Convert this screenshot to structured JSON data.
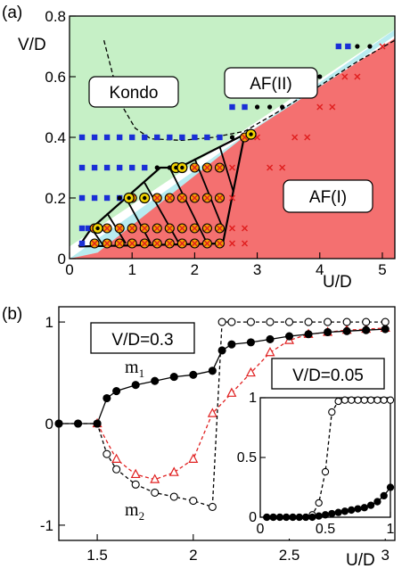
{
  "panel_a": {
    "panel_label": "(a)",
    "xlabel": "U/D",
    "ylabel": "V/D",
    "xticks": [
      "0",
      "1",
      "2",
      "3",
      "4",
      "5"
    ],
    "yticks": [
      "0",
      "0.2",
      "0.4",
      "0.6",
      "0.8"
    ],
    "regions": {
      "kondo": "Kondo",
      "af2": "AF(II)",
      "af1": "AF(I)"
    },
    "colors": {
      "kondo": "#c6f0c6",
      "af2": "#b8ecf0",
      "af1": "#f47070",
      "blue_square": "#1a2fd6",
      "red_cross": "#e02020",
      "ring_yellow": "#f2d400",
      "ring_orange": "#f2a000"
    }
  },
  "panel_b": {
    "panel_label": "(b)",
    "xlabel": "U/D",
    "xticks": [
      "1.5",
      "2",
      "2.5",
      "3"
    ],
    "yticks": [
      "-1",
      "0",
      "1"
    ],
    "box_label": "V/D=0.3",
    "m1": "m",
    "m1_sub": "1",
    "m2": "m",
    "m2_sub": "2",
    "inset": {
      "box_label": "V/D=0.05",
      "xticks": [
        "0",
        "0.5",
        "1"
      ],
      "yticks": [
        "0",
        "0.5",
        "1"
      ]
    },
    "colors": {
      "filled": "#000000",
      "triangle": "#e02020",
      "open_dashed": "#000000"
    }
  },
  "chart_data": [
    {
      "type": "scatter",
      "panel": "(a)",
      "xlabel": "U/D",
      "ylabel": "V/D",
      "xlim": [
        0,
        5.2
      ],
      "ylim": [
        0,
        0.8
      ],
      "series": [
        {
          "marker": "blue square",
          "points": [
            [
              0.2,
              0.05
            ],
            [
              0.2,
              0.1
            ],
            [
              0.3,
              0.1
            ],
            [
              0.2,
              0.2
            ],
            [
              0.4,
              0.2
            ],
            [
              0.6,
              0.2
            ],
            [
              0.8,
              0.2
            ],
            [
              0.2,
              0.3
            ],
            [
              0.4,
              0.3
            ],
            [
              0.6,
              0.3
            ],
            [
              0.8,
              0.3
            ],
            [
              1.0,
              0.3
            ],
            [
              1.2,
              0.3
            ],
            [
              0.2,
              0.4
            ],
            [
              0.4,
              0.4
            ],
            [
              0.6,
              0.4
            ],
            [
              0.8,
              0.4
            ],
            [
              1.0,
              0.4
            ],
            [
              1.2,
              0.4
            ],
            [
              1.4,
              0.4
            ],
            [
              1.6,
              0.4
            ],
            [
              1.8,
              0.4
            ],
            [
              2.0,
              0.4
            ],
            [
              2.2,
              0.4
            ],
            [
              2.4,
              0.4
            ],
            [
              2.6,
              0.5
            ],
            [
              2.8,
              0.5
            ],
            [
              4.3,
              0.7
            ],
            [
              4.45,
              0.7
            ]
          ]
        },
        {
          "marker": "black dot",
          "points": [
            [
              0.6,
              0.1
            ],
            [
              0.8,
              0.2
            ],
            [
              1.4,
              0.3
            ],
            [
              1.6,
              0.3
            ],
            [
              2.6,
              0.4
            ],
            [
              2.8,
              0.4
            ],
            [
              3.0,
              0.5
            ],
            [
              3.2,
              0.5
            ],
            [
              3.4,
              0.5
            ],
            [
              3.8,
              0.6
            ],
            [
              4.0,
              0.6
            ],
            [
              4.6,
              0.7
            ],
            [
              4.8,
              0.7
            ]
          ]
        },
        {
          "marker": "red cross",
          "points": [
            [
              3.0,
              0.4
            ],
            [
              3.2,
              0.3
            ],
            [
              3.4,
              0.3
            ],
            [
              3.6,
              0.4
            ],
            [
              3.8,
              0.4
            ],
            [
              4.0,
              0.5
            ],
            [
              4.2,
              0.5
            ],
            [
              4.4,
              0.6
            ],
            [
              4.6,
              0.6
            ],
            [
              5.0,
              0.7
            ],
            [
              2.6,
              0.1
            ],
            [
              2.8,
              0.1
            ],
            [
              2.6,
              0.05
            ],
            [
              2.8,
              0.05
            ],
            [
              2.6,
              0.2
            ],
            [
              2.6,
              0.3
            ]
          ]
        },
        {
          "marker": "circled cross (ringed region)",
          "points": [
            [
              0.4,
              0.05
            ],
            [
              0.6,
              0.05
            ],
            [
              0.8,
              0.05
            ],
            [
              1.0,
              0.05
            ],
            [
              1.2,
              0.05
            ],
            [
              1.4,
              0.05
            ],
            [
              1.6,
              0.05
            ],
            [
              1.8,
              0.05
            ],
            [
              2.0,
              0.05
            ],
            [
              2.2,
              0.05
            ],
            [
              2.4,
              0.05
            ],
            [
              0.4,
              0.1
            ],
            [
              0.6,
              0.1
            ],
            [
              0.8,
              0.1
            ],
            [
              1.0,
              0.1
            ],
            [
              1.2,
              0.1
            ],
            [
              1.4,
              0.1
            ],
            [
              1.6,
              0.1
            ],
            [
              1.8,
              0.1
            ],
            [
              2.0,
              0.1
            ],
            [
              2.2,
              0.1
            ],
            [
              2.4,
              0.1
            ],
            [
              1.0,
              0.2
            ],
            [
              1.2,
              0.2
            ],
            [
              1.4,
              0.2
            ],
            [
              1.6,
              0.2
            ],
            [
              1.8,
              0.2
            ],
            [
              2.0,
              0.2
            ],
            [
              2.2,
              0.2
            ],
            [
              2.4,
              0.2
            ],
            [
              1.8,
              0.3
            ],
            [
              2.0,
              0.3
            ],
            [
              2.2,
              0.3
            ],
            [
              2.4,
              0.3
            ],
            [
              2.8,
              0.4
            ]
          ]
        }
      ]
    },
    {
      "type": "line",
      "panel": "(b)",
      "xlabel": "U/D",
      "xlim": [
        1.3,
        3.05
      ],
      "ylim": [
        -1.15,
        1.15
      ],
      "series": [
        {
          "name": "m1",
          "marker": "filled circle",
          "line": "solid black",
          "x": [
            1.3,
            1.4,
            1.5,
            1.55,
            1.6,
            1.7,
            1.8,
            1.9,
            2.0,
            2.1,
            2.15,
            2.2,
            2.3,
            2.4,
            2.5,
            2.6,
            2.7,
            2.8,
            2.9,
            3.0
          ],
          "y": [
            0,
            0,
            0,
            0.25,
            0.32,
            0.38,
            0.42,
            0.46,
            0.48,
            0.52,
            0.72,
            0.78,
            0.8,
            0.83,
            0.86,
            0.88,
            0.9,
            0.91,
            0.92,
            0.93
          ]
        },
        {
          "marker": "open triangle",
          "line": "dashed red",
          "x": [
            1.5,
            1.6,
            1.7,
            1.8,
            1.9,
            2.0,
            2.1,
            2.2,
            2.3,
            2.4,
            2.5,
            2.6,
            2.7,
            2.8,
            2.9,
            3.0
          ],
          "y": [
            0,
            -0.35,
            -0.5,
            -0.55,
            -0.48,
            -0.35,
            0.1,
            0.3,
            0.5,
            0.7,
            0.82,
            0.88,
            0.9,
            0.92,
            0.93,
            0.94
          ]
        },
        {
          "name": "m2",
          "marker": "open circle",
          "line": "dashed black",
          "x": [
            1.3,
            1.4,
            1.5,
            1.55,
            1.6,
            1.7,
            1.8,
            1.9,
            2.0,
            2.1,
            2.15,
            2.2,
            2.3,
            2.4,
            2.5,
            2.6,
            2.7,
            2.8,
            2.9,
            3.0
          ],
          "y": [
            0,
            0,
            0,
            -0.3,
            -0.45,
            -0.6,
            -0.68,
            -0.72,
            -0.76,
            -0.82,
            1.0,
            1.0,
            1.0,
            1.0,
            1.0,
            1.0,
            1.0,
            1.0,
            1.0,
            1.0
          ]
        }
      ]
    },
    {
      "type": "line",
      "panel": "(b) inset",
      "xlim": [
        0,
        1
      ],
      "ylim": [
        0,
        1
      ],
      "series": [
        {
          "marker": "open circle",
          "line": "dashed black",
          "x": [
            0.05,
            0.1,
            0.15,
            0.2,
            0.25,
            0.3,
            0.35,
            0.4,
            0.45,
            0.5,
            0.55,
            0.6,
            0.65,
            0.7,
            0.75,
            0.8,
            0.85,
            0.9,
            0.95,
            1.0
          ],
          "y": [
            0,
            0,
            0,
            0,
            0,
            0,
            0,
            0.02,
            0.12,
            0.38,
            0.88,
            0.97,
            0.98,
            0.98,
            0.98,
            0.98,
            0.98,
            0.98,
            0.98,
            0.98
          ]
        },
        {
          "marker": "filled circle",
          "line": "solid black",
          "x": [
            0.05,
            0.1,
            0.15,
            0.2,
            0.25,
            0.3,
            0.35,
            0.4,
            0.45,
            0.5,
            0.55,
            0.6,
            0.65,
            0.7,
            0.75,
            0.8,
            0.85,
            0.9,
            0.95,
            1.0
          ],
          "y": [
            0,
            0,
            0,
            0,
            0,
            0,
            0,
            0,
            0.01,
            0.02,
            0.03,
            0.04,
            0.05,
            0.06,
            0.07,
            0.08,
            0.1,
            0.13,
            0.18,
            0.25
          ]
        }
      ]
    }
  ]
}
